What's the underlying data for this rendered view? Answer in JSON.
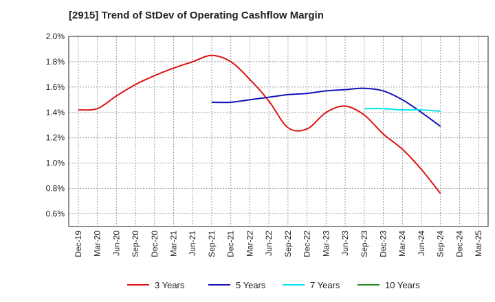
{
  "chart_data": {
    "type": "line",
    "title": "[2915]  Trend of StDev of Operating Cashflow Margin",
    "y_unit": "%",
    "ylim": [
      0.5,
      2.0
    ],
    "y_ticks": [
      {
        "value": 2.0,
        "label": "2.0%"
      },
      {
        "value": 1.8,
        "label": "1.8%"
      },
      {
        "value": 1.6,
        "label": "1.6%"
      },
      {
        "value": 1.4,
        "label": "1.4%"
      },
      {
        "value": 1.2,
        "label": "1.2%"
      },
      {
        "value": 1.0,
        "label": "1.0%"
      },
      {
        "value": 0.8,
        "label": "0.8%"
      },
      {
        "value": 0.6,
        "label": "0.6%"
      }
    ],
    "x_ticks": [
      "Dec-19",
      "Mar-20",
      "Jun-20",
      "Sep-20",
      "Dec-20",
      "Mar-21",
      "Jun-21",
      "Sep-21",
      "Dec-21",
      "Mar-22",
      "Jun-22",
      "Sep-22",
      "Dec-22",
      "Mar-23",
      "Jun-23",
      "Sep-23",
      "Dec-23",
      "Mar-24",
      "Jun-24",
      "Sep-24",
      "Dec-24",
      "Mar-25"
    ],
    "grid": true,
    "legend_position": "bottom",
    "series": [
      {
        "name": "3 Years",
        "color": "#dd1111",
        "x": [
          "Dec-19",
          "Mar-20",
          "Jun-20",
          "Sep-20",
          "Dec-20",
          "Mar-21",
          "Jun-21",
          "Sep-21",
          "Dec-21",
          "Mar-22",
          "Jun-22",
          "Sep-22",
          "Dec-22",
          "Mar-23",
          "Jun-23",
          "Sep-23",
          "Dec-23",
          "Mar-24",
          "Jun-24",
          "Sep-24"
        ],
        "y": [
          1.42,
          1.43,
          1.53,
          1.62,
          1.69,
          1.75,
          1.8,
          1.85,
          1.8,
          1.66,
          1.49,
          1.28,
          1.27,
          1.4,
          1.45,
          1.38,
          1.23,
          1.11,
          0.95,
          0.76
        ]
      },
      {
        "name": "5 Years",
        "color": "#1111bb",
        "x": [
          "Sep-21",
          "Dec-21",
          "Mar-22",
          "Jun-22",
          "Sep-22",
          "Dec-22",
          "Mar-23",
          "Jun-23",
          "Sep-23",
          "Dec-23",
          "Mar-24",
          "Jun-24",
          "Sep-24"
        ],
        "y": [
          1.48,
          1.48,
          1.5,
          1.52,
          1.54,
          1.55,
          1.57,
          1.58,
          1.59,
          1.57,
          1.5,
          1.4,
          1.29
        ]
      },
      {
        "name": "7 Years",
        "color": "#00e5ee",
        "x": [
          "Sep-23",
          "Dec-23",
          "Mar-24",
          "Jun-24",
          "Sep-24"
        ],
        "y": [
          1.43,
          1.43,
          1.42,
          1.42,
          1.41
        ]
      },
      {
        "name": "10 Years",
        "color": "#228b22",
        "x": [],
        "y": []
      }
    ]
  }
}
